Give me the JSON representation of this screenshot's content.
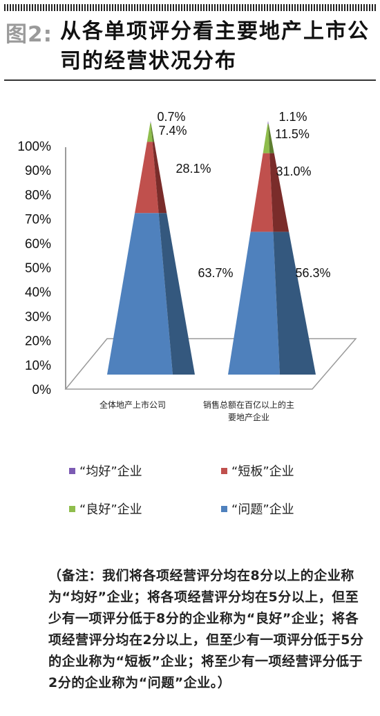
{
  "header": {
    "fig_label": "图2:",
    "title": "从各单项评分看主要地产上市公司的经营状况分布"
  },
  "colors": {
    "excellent": "#7c5bb3",
    "short_board": "#c0504d",
    "good": "#8fbd4c",
    "problem": "#4f81bd",
    "problem_dark": "#34587e",
    "short_board_dark": "#7a2c2a",
    "good_dark": "#5e7e30"
  },
  "chart_data": {
    "type": "bar",
    "style": "3d-pyramid-stacked-100",
    "categories": [
      "全体地产上市公司",
      "销售总额在百亿以上的主要地产企业"
    ],
    "category_labels": [
      [
        "全体地产上市公司"
      ],
      [
        "销售总额在百亿以上的主",
        "要地产企业"
      ]
    ],
    "series": [
      {
        "name": "“问题”企业",
        "values": [
          63.7,
          56.3
        ],
        "labels": [
          "63.7%",
          "56.3%"
        ]
      },
      {
        "name": "“短板”企业",
        "values": [
          28.1,
          31.0
        ],
        "labels": [
          "28.1%",
          "31.0%"
        ]
      },
      {
        "name": "“良好”企业",
        "values": [
          7.4,
          11.5
        ],
        "labels": [
          "7.4%",
          "11.5%"
        ]
      },
      {
        "name": "“均好”企业",
        "values": [
          0.7,
          1.1
        ],
        "labels": [
          "0.7%",
          "1.1%"
        ]
      }
    ],
    "yticks": [
      "0%",
      "10%",
      "20%",
      "30%",
      "40%",
      "50%",
      "60%",
      "70%",
      "80%",
      "90%",
      "100%"
    ],
    "ylim": [
      0,
      100
    ]
  },
  "legend": [
    {
      "label": "“均好”企业",
      "color_key": "excellent"
    },
    {
      "label": "“短板”企业",
      "color_key": "short_board"
    },
    {
      "label": "“良好”企业",
      "color_key": "good"
    },
    {
      "label": "“问题”企业",
      "color_key": "problem"
    }
  ],
  "note": "（备注：我们将各项经营评分均在8分以上的企业称为“均好”企业；将各项经营评分均在5分以上，但至少有一项评分低于8分的企业称为“良好”企业；将各项经营评分均在2分以上，但至少有一项评分低于5分的企业称为“短板”企业；将至少有一项经营评分低于2分的企业称为“问题”企业。）"
}
